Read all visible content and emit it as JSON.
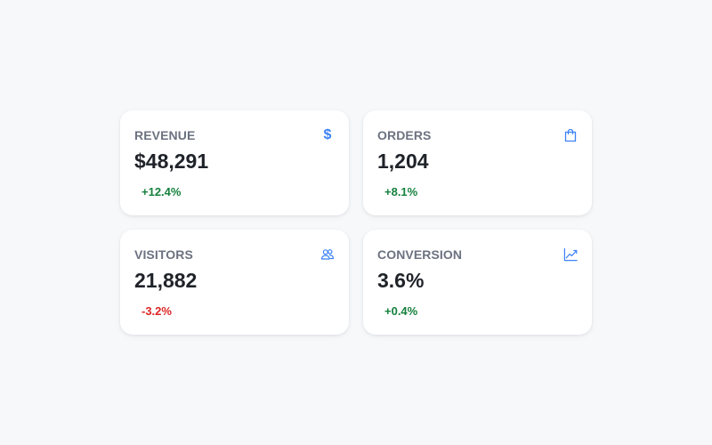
{
  "theme": {
    "accent": "#3b82f6",
    "positive": "#15803d",
    "negative": "#dc2626"
  },
  "cards": [
    {
      "label": "REVENUE",
      "value": "$48,291",
      "delta": "+12.4%",
      "trend": "positive",
      "icon": "dollar-icon",
      "icon_glyph": "$"
    },
    {
      "label": "ORDERS",
      "value": "1,204",
      "delta": "+8.1%",
      "trend": "positive",
      "icon": "shopping-bag-icon"
    },
    {
      "label": "VISITORS",
      "value": "21,882",
      "delta": "-3.2%",
      "trend": "negative",
      "icon": "users-icon"
    },
    {
      "label": "CONVERSION",
      "value": "3.6%",
      "delta": "+0.4%",
      "trend": "positive",
      "icon": "trending-up-icon"
    }
  ]
}
